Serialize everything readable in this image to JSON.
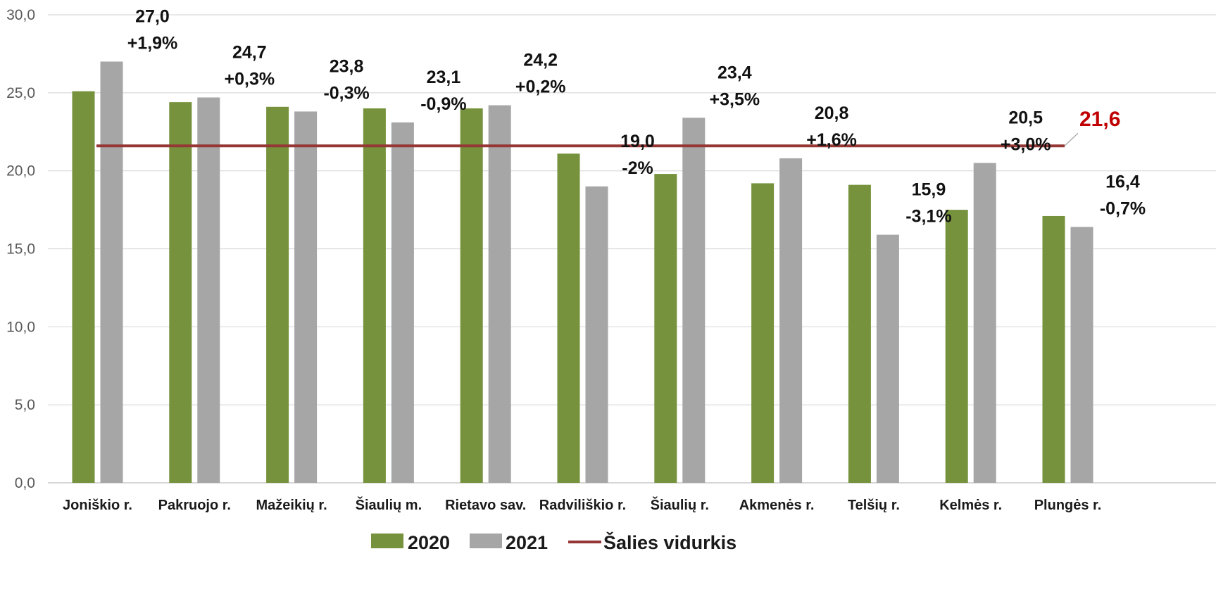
{
  "colors": {
    "series_2020": "#76923c",
    "series_2021": "#a6a6a6",
    "average_line": "#953735",
    "average_label": "#c00000",
    "grid": "#d9d9d9"
  },
  "chart_data": {
    "type": "bar",
    "ylim": [
      0,
      30
    ],
    "yticks": [
      "0,0",
      "5,0",
      "10,0",
      "15,0",
      "20,0",
      "25,0",
      "30,0"
    ],
    "grid": true,
    "legend_position": "bottom",
    "categories": [
      "Joniškio r.",
      "Pakruojo r.",
      "Mažeikių r.",
      "Šiaulių m.",
      "Rietavo sav.",
      "Radviliškio r.",
      "Šiaulių r.",
      "Akmenės r.",
      "Telšių r.",
      "Kelmės r.",
      "Plungės r."
    ],
    "series": [
      {
        "name": "2020",
        "values": [
          25.1,
          24.4,
          24.1,
          24.0,
          24.0,
          21.1,
          19.8,
          19.2,
          19.1,
          17.5,
          17.1
        ]
      },
      {
        "name": "2021",
        "values": [
          27.0,
          24.7,
          23.8,
          23.1,
          24.2,
          19.0,
          23.4,
          20.8,
          15.9,
          20.5,
          16.4
        ]
      }
    ],
    "data_labels": [
      {
        "value": "27,0",
        "change": "+1,9%"
      },
      {
        "value": "24,7",
        "change": "+0,3%"
      },
      {
        "value": "23,8",
        "change": "-0,3%"
      },
      {
        "value": "23,1",
        "change": "-0,9%"
      },
      {
        "value": "24,2",
        "change": "+0,2%"
      },
      {
        "value": "19,0",
        "change": "-2%"
      },
      {
        "value": "23,4",
        "change": "+3,5%"
      },
      {
        "value": "20,8",
        "change": "+1,6%"
      },
      {
        "value": "15,9",
        "change": "-3,1%"
      },
      {
        "value": "20,5",
        "change": "+3,0%"
      },
      {
        "value": "16,4",
        "change": "-0,7%"
      }
    ],
    "average_line": {
      "name": "Šalies vidurkis",
      "value": 21.6,
      "label": "21,6"
    },
    "legend": [
      "2020",
      "2021",
      "Šalies vidurkis"
    ]
  }
}
